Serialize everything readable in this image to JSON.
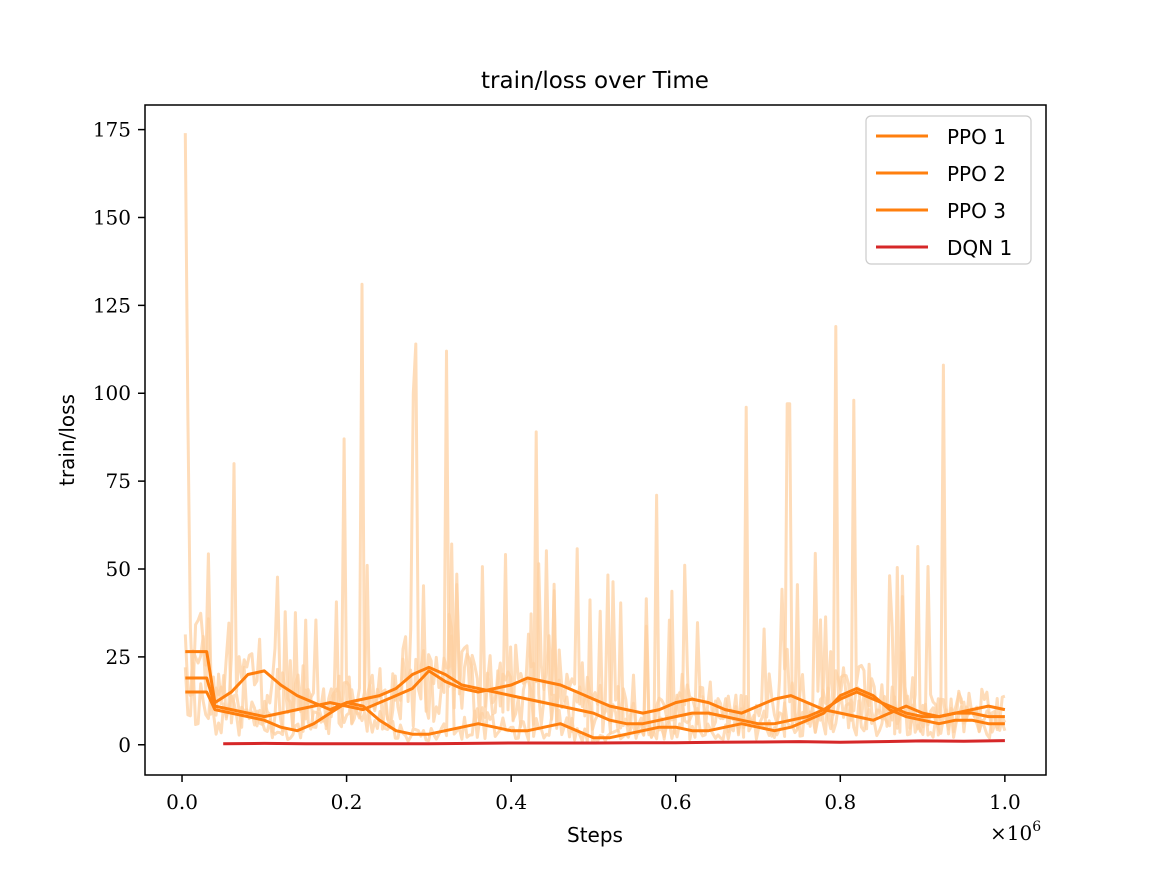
{
  "chart_data": {
    "type": "line",
    "title": "train/loss over Time",
    "xlabel": "Steps",
    "ylabel": "train/loss",
    "x_multiplier_label": "×10",
    "x_multiplier_exponent": "6",
    "xlim": [
      -0.045,
      1.05
    ],
    "ylim": [
      -8.6,
      182
    ],
    "x_ticks": [
      0.0,
      0.2,
      0.4,
      0.6,
      0.8,
      1.0
    ],
    "x_tick_labels": [
      "0.0",
      "0.2",
      "0.4",
      "0.6",
      "0.8",
      "1.0"
    ],
    "y_ticks": [
      0,
      25,
      50,
      75,
      100,
      125,
      150,
      175
    ],
    "y_tick_labels": [
      "0",
      "25",
      "50",
      "75",
      "100",
      "125",
      "150",
      "175"
    ],
    "grid": false,
    "legend_position": "top-right",
    "raw_color": "#fdd0a2",
    "series": [
      {
        "name": "PPO 1",
        "color": "#ff7f0e",
        "x": [
          0.004,
          0.03,
          0.04,
          0.06,
          0.08,
          0.1,
          0.12,
          0.14,
          0.16,
          0.18,
          0.2,
          0.22,
          0.24,
          0.26,
          0.28,
          0.3,
          0.32,
          0.34,
          0.36,
          0.38,
          0.4,
          0.42,
          0.44,
          0.46,
          0.48,
          0.5,
          0.52,
          0.54,
          0.56,
          0.58,
          0.6,
          0.62,
          0.64,
          0.66,
          0.68,
          0.7,
          0.72,
          0.74,
          0.76,
          0.78,
          0.8,
          0.82,
          0.84,
          0.86,
          0.88,
          0.9,
          0.92,
          0.94,
          0.96,
          0.98,
          1.0
        ],
        "y": [
          26.5,
          26.5,
          12,
          15,
          20,
          21,
          17,
          14,
          12,
          10,
          12,
          13,
          14,
          16,
          20,
          22,
          20,
          17,
          16,
          15,
          14,
          13,
          12,
          11,
          10,
          9,
          7,
          6,
          6,
          7,
          8,
          9,
          9,
          8,
          7,
          6,
          6,
          7,
          8,
          10,
          13,
          15,
          13,
          11,
          9,
          8,
          8,
          9,
          10,
          11,
          10
        ]
      },
      {
        "name": "PPO 2",
        "color": "#ff7f0e",
        "x": [
          0.004,
          0.03,
          0.04,
          0.06,
          0.08,
          0.1,
          0.12,
          0.14,
          0.16,
          0.18,
          0.2,
          0.22,
          0.24,
          0.26,
          0.28,
          0.3,
          0.32,
          0.34,
          0.36,
          0.38,
          0.4,
          0.42,
          0.44,
          0.46,
          0.48,
          0.5,
          0.52,
          0.54,
          0.56,
          0.58,
          0.6,
          0.62,
          0.64,
          0.66,
          0.68,
          0.7,
          0.72,
          0.74,
          0.76,
          0.78,
          0.8,
          0.82,
          0.84,
          0.86,
          0.88,
          0.9,
          0.92,
          0.94,
          0.96,
          0.98,
          1.0
        ],
        "y": [
          19,
          19,
          11,
          10,
          9,
          8,
          9,
          10,
          11,
          12,
          11,
          10,
          12,
          14,
          16,
          21,
          18,
          16,
          15,
          16,
          17,
          19,
          18,
          17,
          15,
          13,
          11,
          10,
          9,
          10,
          12,
          13,
          12,
          10,
          9,
          11,
          13,
          14,
          12,
          10,
          9,
          8,
          7,
          9,
          11,
          9,
          8,
          9,
          9,
          8,
          8
        ]
      },
      {
        "name": "PPO 3",
        "color": "#ff7f0e",
        "x": [
          0.004,
          0.03,
          0.04,
          0.06,
          0.08,
          0.1,
          0.12,
          0.14,
          0.16,
          0.18,
          0.2,
          0.22,
          0.24,
          0.26,
          0.28,
          0.3,
          0.32,
          0.34,
          0.36,
          0.38,
          0.4,
          0.42,
          0.44,
          0.46,
          0.48,
          0.5,
          0.52,
          0.54,
          0.56,
          0.58,
          0.6,
          0.62,
          0.64,
          0.66,
          0.68,
          0.7,
          0.72,
          0.74,
          0.76,
          0.78,
          0.8,
          0.82,
          0.84,
          0.86,
          0.88,
          0.9,
          0.92,
          0.94,
          0.96,
          0.98,
          1.0
        ],
        "y": [
          15,
          15,
          10,
          9,
          8,
          7,
          5,
          4,
          6,
          9,
          12,
          11,
          7,
          4,
          3,
          3,
          4,
          5,
          6,
          5,
          4,
          4,
          5,
          6,
          4,
          2,
          2,
          3,
          4,
          5,
          5,
          4,
          4,
          5,
          6,
          5,
          4,
          5,
          7,
          9,
          14,
          16,
          14,
          10,
          8,
          7,
          6,
          7,
          7,
          6,
          6
        ]
      },
      {
        "name": "DQN 1",
        "color": "#d62728",
        "x": [
          0.05,
          0.1,
          0.15,
          0.2,
          0.25,
          0.3,
          0.35,
          0.4,
          0.45,
          0.5,
          0.55,
          0.6,
          0.65,
          0.7,
          0.75,
          0.8,
          0.85,
          0.9,
          0.95,
          1.0
        ],
        "y": [
          0.3,
          0.4,
          0.3,
          0.3,
          0.3,
          0.3,
          0.4,
          0.5,
          0.5,
          0.5,
          0.6,
          0.6,
          0.7,
          0.8,
          0.9,
          0.7,
          0.9,
          1.1,
          1.0,
          1.2
        ]
      }
    ]
  }
}
